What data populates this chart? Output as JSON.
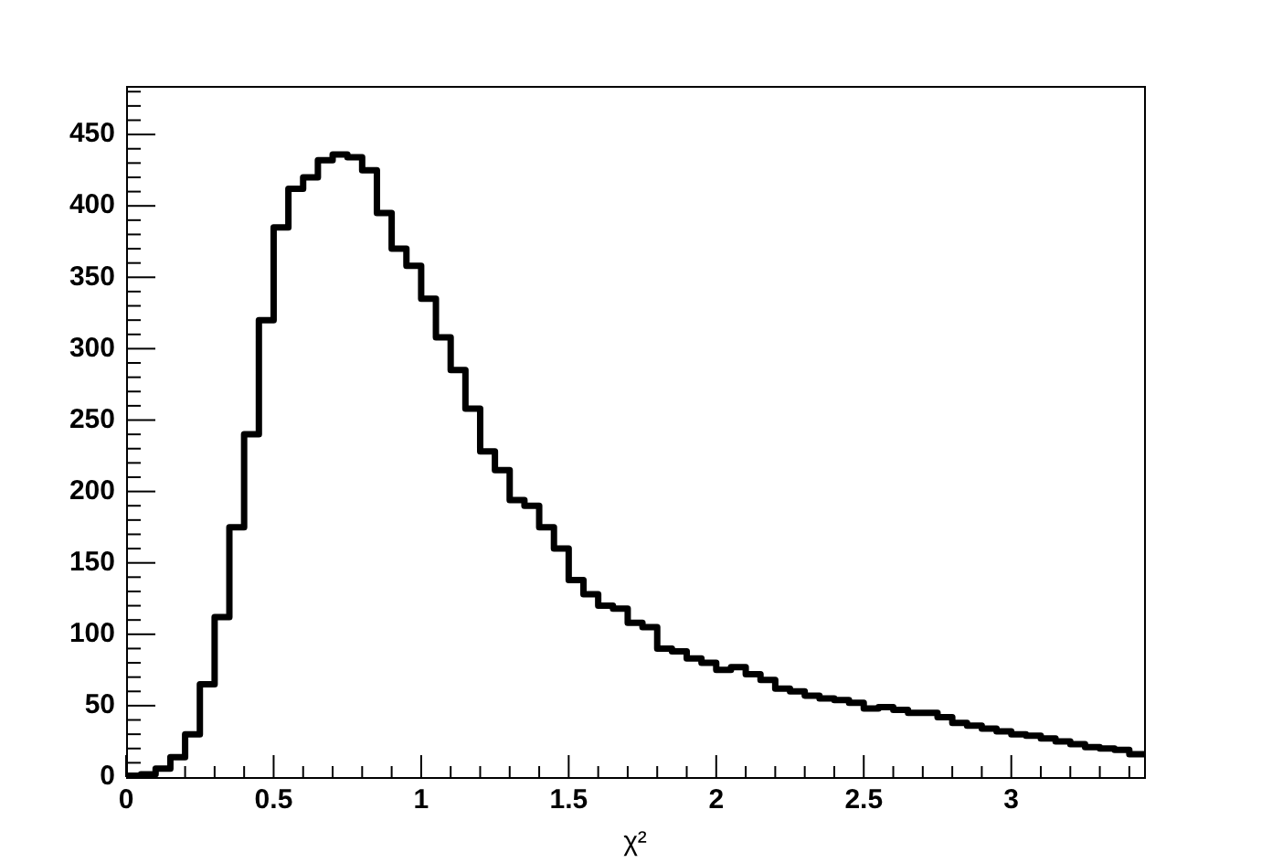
{
  "chart_data": {
    "type": "histogram",
    "xlabel": "χ²",
    "bins": [
      0,
      0.05,
      0.1,
      0.15,
      0.2,
      0.25,
      0.3,
      0.35,
      0.4,
      0.45,
      0.5,
      0.55,
      0.6,
      0.65,
      0.7,
      0.75,
      0.8,
      0.85,
      0.9,
      0.95,
      1,
      1.05,
      1.1,
      1.15,
      1.2,
      1.25,
      1.3,
      1.35,
      1.4,
      1.45,
      1.5,
      1.55,
      1.6,
      1.65,
      1.7,
      1.75,
      1.8,
      1.85,
      1.9,
      1.95,
      2,
      2.05,
      2.1,
      2.15,
      2.2,
      2.25,
      2.3,
      2.35,
      2.4,
      2.45,
      2.5,
      2.55,
      2.6,
      2.65,
      2.7,
      2.75,
      2.8,
      2.85,
      2.9,
      2.95,
      3,
      3.05,
      3.1,
      3.15,
      3.2,
      3.25,
      3.3,
      3.35,
      3.4,
      3.45
    ],
    "values": [
      1,
      2,
      6,
      14,
      30,
      65,
      112,
      175,
      240,
      320,
      385,
      412,
      420,
      432,
      436,
      434,
      425,
      395,
      370,
      358,
      335,
      308,
      285,
      258,
      228,
      215,
      194,
      190,
      175,
      160,
      138,
      128,
      120,
      118,
      108,
      105,
      90,
      88,
      83,
      80,
      75,
      77,
      72,
      68,
      62,
      60,
      57,
      55,
      54,
      52,
      48,
      49,
      47,
      45,
      45,
      42,
      38,
      36,
      34,
      32,
      30,
      29,
      27,
      25,
      23,
      21,
      20,
      19,
      16
    ],
    "color": "#000000",
    "xlim": [
      0,
      3.45
    ],
    "ylim": [
      0,
      484
    ],
    "xticks": [
      0,
      {
        "value": 0.1,
        "label": null
      },
      {
        "value": 0.2,
        "label": null
      },
      {
        "value": 0.3,
        "label": null
      },
      {
        "value": 0.4,
        "label": null
      },
      0.5,
      {
        "value": 0.6,
        "label": null
      },
      {
        "value": 0.7,
        "label": null
      },
      {
        "value": 0.8,
        "label": null
      },
      {
        "value": 0.9,
        "label": null
      },
      1,
      {
        "value": 1.1,
        "label": null
      },
      {
        "value": 1.2,
        "label": null
      },
      {
        "value": 1.3,
        "label": null
      },
      {
        "value": 1.4,
        "label": null
      },
      1.5,
      {
        "value": 1.6,
        "label": null
      },
      {
        "value": 1.7,
        "label": null
      },
      {
        "value": 1.8,
        "label": null
      },
      {
        "value": 1.9,
        "label": null
      },
      2,
      {
        "value": 2.1,
        "label": null
      },
      {
        "value": 2.2,
        "label": null
      },
      {
        "value": 2.3,
        "label": null
      },
      {
        "value": 2.4,
        "label": null
      },
      2.5,
      {
        "value": 2.6,
        "label": null
      },
      {
        "value": 2.7,
        "label": null
      },
      {
        "value": 2.8,
        "label": null
      },
      {
        "value": 2.9,
        "label": null
      },
      3,
      {
        "value": 3.1,
        "label": null
      },
      {
        "value": 3.2,
        "label": null
      },
      {
        "value": 3.3,
        "label": null
      },
      {
        "value": 3.4,
        "label": null
      }
    ],
    "yticks": [
      0,
      {
        "value": 10,
        "label": null
      },
      {
        "value": 20,
        "label": null
      },
      {
        "value": 30,
        "label": null
      },
      {
        "value": 40,
        "label": null
      },
      50,
      {
        "value": 60,
        "label": null
      },
      {
        "value": 70,
        "label": null
      },
      {
        "value": 80,
        "label": null
      },
      {
        "value": 90,
        "label": null
      },
      100,
      {
        "value": 110,
        "label": null
      },
      {
        "value": 120,
        "label": null
      },
      {
        "value": 130,
        "label": null
      },
      {
        "value": 140,
        "label": null
      },
      150,
      {
        "value": 160,
        "label": null
      },
      {
        "value": 170,
        "label": null
      },
      {
        "value": 180,
        "label": null
      },
      {
        "value": 190,
        "label": null
      },
      200,
      {
        "value": 210,
        "label": null
      },
      {
        "value": 220,
        "label": null
      },
      {
        "value": 230,
        "label": null
      },
      {
        "value": 240,
        "label": null
      },
      250,
      {
        "value": 260,
        "label": null
      },
      {
        "value": 270,
        "label": null
      },
      {
        "value": 280,
        "label": null
      },
      {
        "value": 290,
        "label": null
      },
      300,
      {
        "value": 310,
        "label": null
      },
      {
        "value": 320,
        "label": null
      },
      {
        "value": 330,
        "label": null
      },
      {
        "value": 340,
        "label": null
      },
      350,
      {
        "value": 360,
        "label": null
      },
      {
        "value": 370,
        "label": null
      },
      {
        "value": 380,
        "label": null
      },
      {
        "value": 390,
        "label": null
      },
      400,
      {
        "value": 410,
        "label": null
      },
      {
        "value": 420,
        "label": null
      },
      {
        "value": 430,
        "label": null
      },
      {
        "value": 440,
        "label": null
      },
      450,
      {
        "value": 460,
        "label": null
      },
      {
        "value": 470,
        "label": null
      },
      {
        "value": 480,
        "label": null
      }
    ],
    "grid": false,
    "legend": false
  }
}
